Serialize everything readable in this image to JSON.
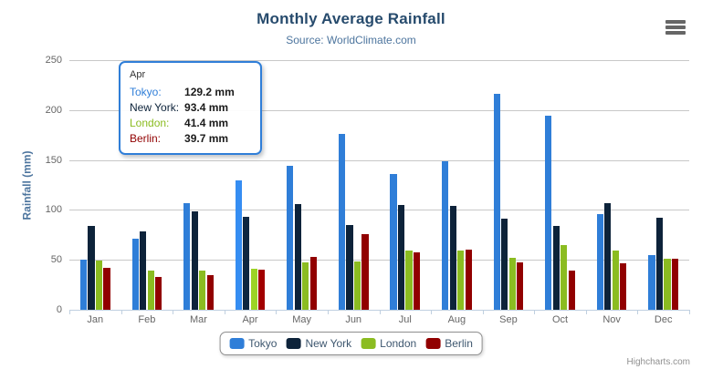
{
  "credits": "Highcharts.com",
  "icons": {
    "export_menu": "hamburger-icon"
  },
  "chart_data": {
    "type": "bar",
    "title": "Monthly Average Rainfall",
    "subtitle": "Source: WorldClimate.com",
    "xlabel": "",
    "ylabel": "Rainfall (mm)",
    "ylim": [
      0,
      250
    ],
    "yticks": [
      0,
      50,
      100,
      150,
      200,
      250
    ],
    "grid": true,
    "legend_position": "bottom",
    "hovered_category": "Apr",
    "categories": [
      "Jan",
      "Feb",
      "Mar",
      "Apr",
      "May",
      "Jun",
      "Jul",
      "Aug",
      "Sep",
      "Oct",
      "Nov",
      "Dec"
    ],
    "series": [
      {
        "name": "Tokyo",
        "color": "#2f7ed8",
        "values": [
          49.9,
          71.5,
          106.4,
          129.2,
          144.0,
          176.0,
          135.6,
          148.5,
          216.4,
          194.1,
          95.6,
          54.4
        ]
      },
      {
        "name": "New York",
        "color": "#0d233a",
        "values": [
          83.6,
          78.8,
          98.5,
          93.4,
          106.0,
          84.5,
          105.0,
          104.3,
          91.2,
          83.5,
          106.6,
          92.3
        ]
      },
      {
        "name": "London",
        "color": "#8bbc21",
        "values": [
          48.9,
          38.8,
          39.3,
          41.4,
          47.0,
          48.3,
          59.0,
          59.6,
          52.4,
          65.2,
          59.3,
          51.2
        ]
      },
      {
        "name": "Berlin",
        "color": "#910000",
        "values": [
          42.4,
          33.2,
          34.5,
          39.7,
          52.6,
          75.5,
          57.4,
          60.4,
          47.6,
          39.1,
          46.8,
          51.1
        ]
      }
    ]
  },
  "tooltip": {
    "header": "Apr",
    "border_color": "#2f7ed8",
    "rows": [
      {
        "label": "Tokyo:",
        "value": "129.2 mm",
        "color": "#2f7ed8"
      },
      {
        "label": "New York:",
        "value": "93.4 mm",
        "color": "#0d233a"
      },
      {
        "label": "London:",
        "value": "41.4 mm",
        "color": "#8bbc21"
      },
      {
        "label": "Berlin:",
        "value": "39.7 mm",
        "color": "#910000"
      }
    ]
  }
}
